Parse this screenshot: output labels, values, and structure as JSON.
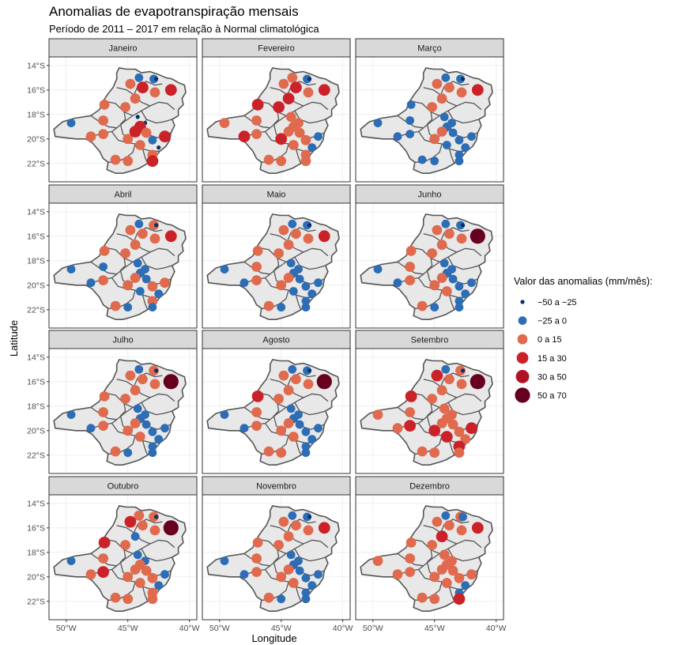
{
  "title": "Anomalias de evapotranspiração mensais",
  "subtitle": "Período de 2011 – 2017 em relação à Normal climatológica",
  "chart_data": {
    "type": "scatter",
    "facet_titles": [
      "Janeiro",
      "Fevereiro",
      "Março",
      "Abril",
      "Maio",
      "Junho",
      "Julho",
      "Agosto",
      "Setembro",
      "Outubro",
      "Novembro",
      "Dezembro"
    ],
    "xlabel": "Longitude",
    "ylabel": "Latitude",
    "x_ticks": [
      {
        "value": -50,
        "label": "50°W"
      },
      {
        "value": -45,
        "label": "45°W"
      },
      {
        "value": -40,
        "label": "40°W"
      }
    ],
    "y_ticks": [
      {
        "value": -14,
        "label": "14°S"
      },
      {
        "value": -16,
        "label": "16°S"
      },
      {
        "value": -18,
        "label": "18°S"
      },
      {
        "value": -20,
        "label": "20°S"
      },
      {
        "value": -22,
        "label": "22°S"
      }
    ],
    "xlim": [
      -51.4,
      -39.4
    ],
    "ylim": [
      -23.5,
      -13.3
    ],
    "legend": {
      "title": "Valor das anomalias (mm/mês):",
      "position": "right",
      "classes": [
        {
          "label": "−50 a −25",
          "color": "#08306b",
          "size": 1
        },
        {
          "label": "−25 a 0",
          "color": "#2c6db5",
          "size": 2
        },
        {
          "label": "0 a 15",
          "color": "#e06a4e",
          "size": 3
        },
        {
          "label": "15 a 30",
          "color": "#cb2128",
          "size": 4
        },
        {
          "label": "30 a 50",
          "color": "#b11224",
          "size": 5
        },
        {
          "label": "50 a 70",
          "color": "#67001f",
          "size": 6
        }
      ]
    },
    "stations": [
      {
        "lon": -44.1,
        "lat": -15.0
      },
      {
        "lon": -42.9,
        "lat": -15.1
      },
      {
        "lon": -44.8,
        "lat": -15.5
      },
      {
        "lon": -43.8,
        "lat": -15.8
      },
      {
        "lon": -42.8,
        "lat": -16.2
      },
      {
        "lon": -41.5,
        "lat": -16.0
      },
      {
        "lon": -44.4,
        "lat": -16.7
      },
      {
        "lon": -46.9,
        "lat": -17.2
      },
      {
        "lon": -45.2,
        "lat": -17.4
      },
      {
        "lon": -44.2,
        "lat": -18.2
      },
      {
        "lon": -43.6,
        "lat": -18.7
      },
      {
        "lon": -47.0,
        "lat": -18.5
      },
      {
        "lon": -49.6,
        "lat": -18.7
      },
      {
        "lon": -44.0,
        "lat": -19.0
      },
      {
        "lon": -43.5,
        "lat": -19.5
      },
      {
        "lon": -48.0,
        "lat": -19.8
      },
      {
        "lon": -47.0,
        "lat": -19.6
      },
      {
        "lon": -45.0,
        "lat": -20.0
      },
      {
        "lon": -44.4,
        "lat": -19.4
      },
      {
        "lon": -43.0,
        "lat": -20.1
      },
      {
        "lon": -42.0,
        "lat": -19.8
      },
      {
        "lon": -44.0,
        "lat": -20.5
      },
      {
        "lon": -42.5,
        "lat": -20.7
      },
      {
        "lon": -43.0,
        "lat": -21.3
      },
      {
        "lon": -45.0,
        "lat": -21.8
      },
      {
        "lon": -46.0,
        "lat": -21.7
      },
      {
        "lon": -43.0,
        "lat": -21.8
      },
      {
        "lon": -42.7,
        "lat": -15.1
      }
    ],
    "series": [
      {
        "name": "Janeiro",
        "classes": [
          1,
          1,
          2,
          3,
          2,
          3,
          2,
          2,
          2,
          0,
          0,
          2,
          1,
          3,
          2,
          2,
          2,
          2,
          3,
          1,
          3,
          2,
          0,
          2,
          2,
          2,
          3,
          0
        ]
      },
      {
        "name": "Fevereiro",
        "classes": [
          2,
          1,
          2,
          3,
          2,
          3,
          3,
          3,
          3,
          2,
          2,
          2,
          2,
          2,
          2,
          3,
          2,
          3,
          2,
          2,
          1,
          2,
          1,
          2,
          2,
          2,
          2,
          0
        ]
      },
      {
        "name": "Março",
        "classes": [
          1,
          1,
          2,
          2,
          2,
          3,
          2,
          1,
          2,
          1,
          1,
          1,
          1,
          1,
          1,
          1,
          1,
          2,
          2,
          1,
          1,
          1,
          1,
          1,
          1,
          1,
          1,
          0
        ]
      },
      {
        "name": "Abril",
        "classes": [
          1,
          2,
          2,
          2,
          2,
          3,
          2,
          2,
          2,
          1,
          1,
          1,
          1,
          1,
          1,
          1,
          2,
          2,
          2,
          2,
          2,
          1,
          1,
          2,
          1,
          2,
          1,
          0
        ]
      },
      {
        "name": "Maio",
        "classes": [
          1,
          1,
          2,
          2,
          2,
          3,
          2,
          2,
          2,
          1,
          1,
          2,
          1,
          1,
          1,
          1,
          2,
          2,
          2,
          1,
          1,
          1,
          1,
          1,
          1,
          2,
          1,
          0
        ]
      },
      {
        "name": "Junho",
        "classes": [
          1,
          1,
          2,
          2,
          2,
          5,
          2,
          2,
          2,
          1,
          1,
          2,
          1,
          1,
          1,
          1,
          2,
          2,
          2,
          1,
          1,
          2,
          1,
          1,
          1,
          2,
          1,
          0
        ]
      },
      {
        "name": "Julho",
        "classes": [
          1,
          2,
          2,
          2,
          2,
          5,
          2,
          2,
          2,
          1,
          1,
          2,
          1,
          1,
          1,
          1,
          2,
          2,
          2,
          1,
          1,
          2,
          1,
          1,
          1,
          2,
          1,
          0
        ]
      },
      {
        "name": "Agosto",
        "classes": [
          1,
          1,
          2,
          2,
          2,
          5,
          2,
          3,
          2,
          1,
          1,
          2,
          1,
          1,
          1,
          1,
          2,
          2,
          2,
          1,
          1,
          2,
          1,
          1,
          2,
          2,
          1,
          0
        ]
      },
      {
        "name": "Setembro",
        "classes": [
          1,
          2,
          3,
          2,
          2,
          5,
          2,
          3,
          2,
          2,
          2,
          2,
          2,
          2,
          2,
          2,
          3,
          3,
          2,
          2,
          3,
          3,
          2,
          3,
          2,
          2,
          2,
          0
        ]
      },
      {
        "name": "Outubro",
        "classes": [
          2,
          2,
          3,
          2,
          2,
          5,
          1,
          3,
          2,
          1,
          1,
          2,
          1,
          2,
          2,
          2,
          3,
          2,
          2,
          2,
          1,
          2,
          1,
          2,
          2,
          2,
          2,
          0
        ]
      },
      {
        "name": "Novembro",
        "classes": [
          1,
          1,
          2,
          2,
          2,
          3,
          2,
          2,
          2,
          1,
          1,
          2,
          1,
          1,
          1,
          1,
          2,
          2,
          2,
          1,
          1,
          2,
          1,
          1,
          1,
          2,
          1,
          0
        ]
      },
      {
        "name": "Dezembro",
        "classes": [
          1,
          2,
          2,
          2,
          2,
          3,
          3,
          2,
          2,
          2,
          2,
          2,
          2,
          2,
          2,
          2,
          2,
          2,
          2,
          2,
          2,
          2,
          1,
          1,
          2,
          2,
          3,
          1
        ]
      }
    ]
  }
}
